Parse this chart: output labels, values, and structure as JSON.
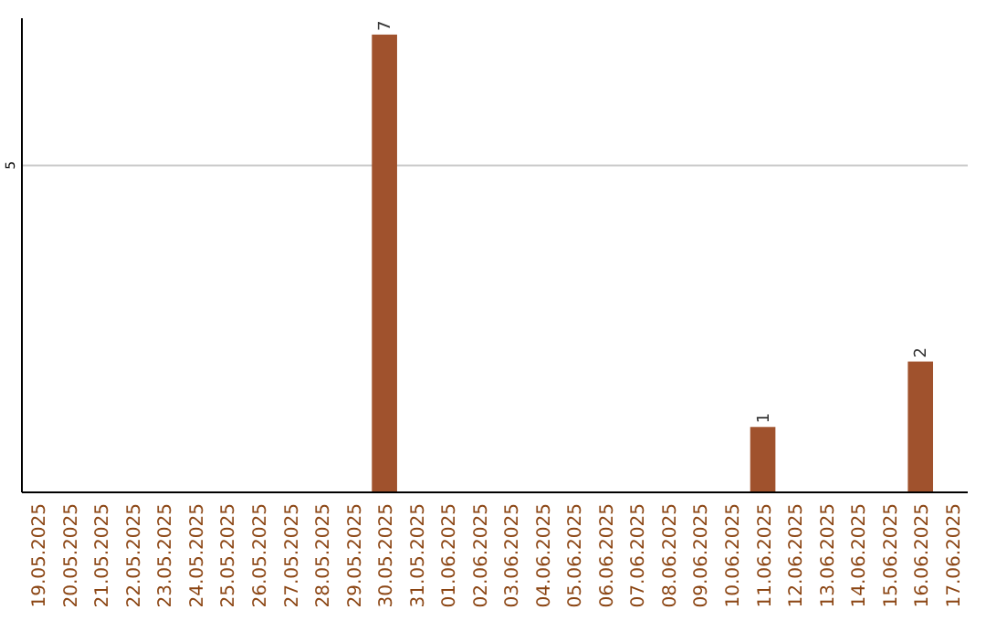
{
  "chart_data": {
    "type": "bar",
    "categories": [
      "19.05.2025",
      "20.05.2025",
      "21.05.2025",
      "22.05.2025",
      "23.05.2025",
      "24.05.2025",
      "25.05.2025",
      "26.05.2025",
      "27.05.2025",
      "28.05.2025",
      "29.05.2025",
      "30.05.2025",
      "31.05.2025",
      "01.06.2025",
      "02.06.2025",
      "03.06.2025",
      "04.06.2025",
      "05.06.2025",
      "06.06.2025",
      "07.06.2025",
      "08.06.2025",
      "09.06.2025",
      "10.06.2025",
      "11.06.2025",
      "12.06.2025",
      "13.06.2025",
      "14.06.2025",
      "15.06.2025",
      "16.06.2025",
      "17.06.2025"
    ],
    "values": [
      0,
      0,
      0,
      0,
      0,
      0,
      0,
      0,
      0,
      0,
      0,
      7,
      0,
      0,
      0,
      0,
      0,
      0,
      0,
      0,
      0,
      0,
      0,
      1,
      0,
      0,
      0,
      0,
      2,
      0
    ],
    "value_labels": [
      null,
      null,
      null,
      null,
      null,
      null,
      null,
      null,
      null,
      null,
      null,
      "7",
      null,
      null,
      null,
      null,
      null,
      null,
      null,
      null,
      null,
      null,
      null,
      "1",
      null,
      null,
      null,
      null,
      "2",
      null
    ],
    "color": "#a0522d",
    "ylim": [
      0,
      7.25
    ],
    "yticks": [
      5
    ],
    "grid": "y"
  }
}
